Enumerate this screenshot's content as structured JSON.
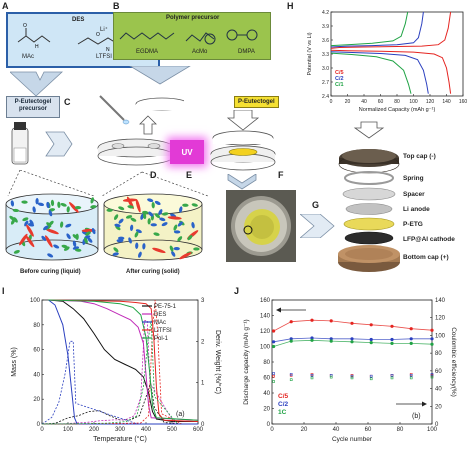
{
  "panels": {
    "A": "A",
    "B": "B",
    "C": "C",
    "D": "D",
    "E": "E",
    "F": "F",
    "G": "G",
    "H": "H",
    "I": "I",
    "J": "J"
  },
  "des": {
    "title": "DES",
    "mac": "MAc",
    "ltfsi": "LTFSI",
    "li": "Li⁺"
  },
  "polymer": {
    "title": "Polymer precursor",
    "egdma": "EGDMA",
    "acmo": "AcMo",
    "dmpa": "DMPA"
  },
  "chips": {
    "precursor": "P-Eutectogel\nprecursor",
    "eutectogel": "P-Eutectogel",
    "uv": "UV"
  },
  "curing": {
    "before": "Before curing (liquid)",
    "after": "After curing (solid)"
  },
  "cell_layers": [
    "Top cap (-)",
    "Spring",
    "Spacer",
    "Li anode",
    "P-ETG",
    "LFP@Al cathode",
    "Bottom cap (+)"
  ],
  "colors": {
    "red": "#e52521",
    "blue": "#2a3fbf",
    "green": "#20a345",
    "magenta": "#c02bb8",
    "black": "#111111",
    "olive": "#9bc44d",
    "skyblue": "#cfe6f6",
    "yellow": "#f5e032"
  },
  "chart_data": [
    {
      "id": "H",
      "type": "line",
      "xlabel": "Normalized Capacity (mAh g⁻¹)",
      "ylabel": "Potential (V vs Li)",
      "xlim": [
        0,
        160
      ],
      "ylim": [
        2.4,
        4.2
      ],
      "xticks": [
        "0",
        "20",
        "40",
        "60",
        "80",
        "100",
        "120",
        "140",
        "160"
      ],
      "yticks": [
        "2.4",
        "2.7",
        "3.0",
        "3.3",
        "3.6",
        "3.9",
        "4.2"
      ],
      "legend": [
        "C/5",
        "C/2",
        "C/1"
      ],
      "series": [
        {
          "name": "C/5",
          "color": "#e52521",
          "charge": [
            [
              0,
              3.42
            ],
            [
              10,
              3.44
            ],
            [
              40,
              3.45
            ],
            [
              80,
              3.46
            ],
            [
              110,
              3.47
            ],
            [
              130,
              3.5
            ],
            [
              138,
              3.6
            ],
            [
              142,
              3.85
            ],
            [
              145,
              4.2
            ]
          ],
          "discharge": [
            [
              0,
              3.38
            ],
            [
              20,
              3.37
            ],
            [
              60,
              3.36
            ],
            [
              100,
              3.34
            ],
            [
              125,
              3.3
            ],
            [
              135,
              3.22
            ],
            [
              140,
              3.0
            ],
            [
              143,
              2.7
            ],
            [
              145,
              2.45
            ]
          ]
        },
        {
          "name": "C/2",
          "color": "#2a3fbf",
          "charge": [
            [
              0,
              3.45
            ],
            [
              20,
              3.47
            ],
            [
              50,
              3.48
            ],
            [
              80,
              3.5
            ],
            [
              100,
              3.54
            ],
            [
              106,
              3.65
            ],
            [
              110,
              3.95
            ],
            [
              112,
              4.2
            ]
          ],
          "discharge": [
            [
              0,
              3.35
            ],
            [
              30,
              3.33
            ],
            [
              60,
              3.31
            ],
            [
              90,
              3.27
            ],
            [
              105,
              3.18
            ],
            [
              112,
              2.95
            ],
            [
              116,
              2.65
            ],
            [
              118,
              2.45
            ]
          ]
        },
        {
          "name": "C/1",
          "color": "#20a345",
          "charge": [
            [
              0,
              3.48
            ],
            [
              20,
              3.5
            ],
            [
              50,
              3.53
            ],
            [
              75,
              3.58
            ],
            [
              85,
              3.68
            ],
            [
              90,
              3.95
            ],
            [
              93,
              4.2
            ]
          ],
          "discharge": [
            [
              0,
              3.32
            ],
            [
              25,
              3.29
            ],
            [
              55,
              3.24
            ],
            [
              75,
              3.15
            ],
            [
              88,
              2.95
            ],
            [
              94,
              2.65
            ],
            [
              97,
              2.45
            ]
          ]
        }
      ]
    },
    {
      "id": "I",
      "type": "line",
      "xlabel": "Temperature (°C)",
      "ylabel": "Mass (%)",
      "y2label": "Deriv. Weight (%/°C)",
      "xlim": [
        0,
        600
      ],
      "ylim": [
        0,
        100
      ],
      "y2lim": [
        0,
        3
      ],
      "xticks": [
        "0",
        "100",
        "200",
        "300",
        "400",
        "500",
        "600"
      ],
      "yticks": [
        "0",
        "20",
        "40",
        "60",
        "80",
        "100"
      ],
      "y2ticks": [
        "0",
        "1",
        "2",
        "3"
      ],
      "annotation": "(a)",
      "legend": [
        "PE-75-1",
        "DES",
        "MAc",
        "LiTFSI",
        "Pol-1"
      ],
      "series": [
        {
          "name": "PE-75-1",
          "color": "#111111",
          "points": [
            [
              25,
              100
            ],
            [
              80,
              99
            ],
            [
              120,
              93
            ],
            [
              160,
              85
            ],
            [
              200,
              73
            ],
            [
              240,
              60
            ],
            [
              280,
              52
            ],
            [
              320,
              48
            ],
            [
              360,
              44
            ],
            [
              390,
              38
            ],
            [
              410,
              25
            ],
            [
              425,
              10
            ],
            [
              440,
              4
            ],
            [
              500,
              2
            ],
            [
              600,
              2
            ]
          ]
        },
        {
          "name": "DES",
          "color": "#c02bb8",
          "points": [
            [
              25,
              100
            ],
            [
              150,
              99
            ],
            [
              200,
              97
            ],
            [
              250,
              93
            ],
            [
              300,
              88
            ],
            [
              340,
              84
            ],
            [
              370,
              78
            ],
            [
              390,
              65
            ],
            [
              400,
              40
            ],
            [
              410,
              15
            ],
            [
              420,
              5
            ],
            [
              600,
              3
            ]
          ]
        },
        {
          "name": "MAc",
          "color": "#2a3fbf",
          "points": [
            [
              25,
              100
            ],
            [
              50,
              96
            ],
            [
              80,
              80
            ],
            [
              100,
              55
            ],
            [
              115,
              25
            ],
            [
              125,
              5
            ],
            [
              135,
              0
            ],
            [
              600,
              0
            ]
          ]
        },
        {
          "name": "LiTFSI",
          "color": "#e52521",
          "points": [
            [
              25,
              100
            ],
            [
              300,
              99
            ],
            [
              360,
              98
            ],
            [
              400,
              97
            ],
            [
              420,
              93
            ],
            [
              430,
              70
            ],
            [
              440,
              30
            ],
            [
              450,
              8
            ],
            [
              470,
              3
            ],
            [
              600,
              2
            ]
          ]
        },
        {
          "name": "Pol-1",
          "color": "#20a345",
          "points": [
            [
              25,
              100
            ],
            [
              200,
              99
            ],
            [
              300,
              97
            ],
            [
              350,
              94
            ],
            [
              380,
              88
            ],
            [
              400,
              70
            ],
            [
              415,
              40
            ],
            [
              425,
              15
            ],
            [
              440,
              5
            ],
            [
              600,
              3
            ]
          ]
        }
      ]
    },
    {
      "id": "J",
      "type": "scatter",
      "xlabel": "Cycle number",
      "ylabel": "Discharge capacity (mAh g⁻¹)",
      "y2label": "Coulombic efficiency(%)",
      "xlim": [
        0,
        100
      ],
      "ylim": [
        0,
        160
      ],
      "y2lim": [
        0,
        140
      ],
      "xticks": [
        "0",
        "20",
        "40",
        "60",
        "80",
        "100"
      ],
      "yticks": [
        "0",
        "20",
        "40",
        "60",
        "80",
        "100",
        "120",
        "140",
        "160"
      ],
      "y2ticks": [
        "0",
        "20",
        "40",
        "60",
        "80",
        "100",
        "120",
        "140"
      ],
      "annotation": "(b)",
      "legend": [
        "C/5",
        "C/2",
        "1C"
      ],
      "series": [
        {
          "name": "C/5",
          "color": "#e52521",
          "capacity": [
            120,
            132,
            134,
            133,
            130,
            128,
            126,
            123,
            121
          ],
          "efficiency": [
            54,
            55,
            56,
            55,
            55,
            54,
            55,
            56,
            55
          ]
        },
        {
          "name": "C/2",
          "color": "#2a3fbf",
          "capacity": [
            106,
            110,
            111,
            110,
            110,
            109,
            109,
            110,
            110
          ],
          "efficiency": [
            57,
            56,
            55,
            55,
            54,
            54,
            55,
            55,
            56
          ]
        },
        {
          "name": "1C",
          "color": "#20a345",
          "capacity": [
            100,
            107,
            108,
            107,
            106,
            105,
            104,
            104,
            103
          ],
          "efficiency": [
            48,
            50,
            52,
            53,
            52,
            51,
            52,
            52,
            53
          ]
        }
      ],
      "cycles": [
        1,
        12,
        25,
        37,
        50,
        62,
        75,
        87,
        100
      ]
    }
  ]
}
